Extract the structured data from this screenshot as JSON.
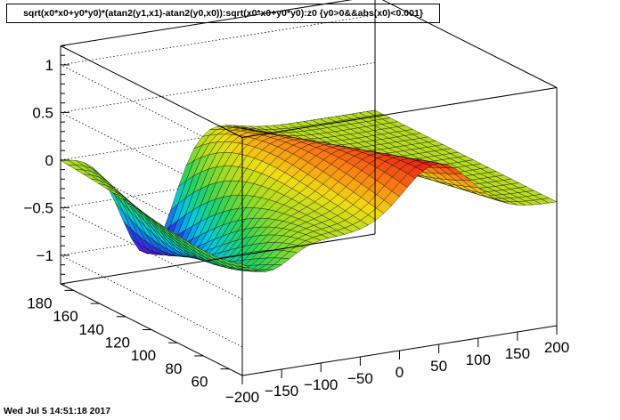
{
  "chart_data": {
    "type": "surface",
    "title": "sqrt(x0*x0+y0*y0)*(atan2(y1,x1)-atan2(y0,x0)):sqrt(x0*x0+y0*y0):z0 {y0>0&&abs(x0)<0.001}",
    "xlabel": "",
    "ylabel": "",
    "zlabel": "",
    "x_axis": {
      "range": [
        -200,
        200
      ],
      "ticks": [
        "−200",
        "−150",
        "−100",
        "−50",
        "0",
        "50",
        "100",
        "150",
        "200"
      ]
    },
    "y_axis": {
      "range": [
        50,
        190
      ],
      "ticks": [
        "60",
        "80",
        "100",
        "120",
        "140",
        "160",
        "180"
      ]
    },
    "z_axis": {
      "range": [
        -1.3,
        1.2
      ],
      "ticks": [
        "−1",
        "−0.5",
        "0",
        "0.5",
        "1"
      ],
      "tick_values": [
        -1,
        -0.5,
        0,
        0.5,
        1
      ]
    },
    "grid": true,
    "palette": "rainbow",
    "surface_description_values": {
      "z_max": 0.6,
      "z_min": -1.2
    }
  },
  "footer": {
    "timestamp": "Wed Jul  5 14:51:18 2017"
  },
  "colors": {
    "frame": "#000000",
    "background": "#ffffff"
  }
}
